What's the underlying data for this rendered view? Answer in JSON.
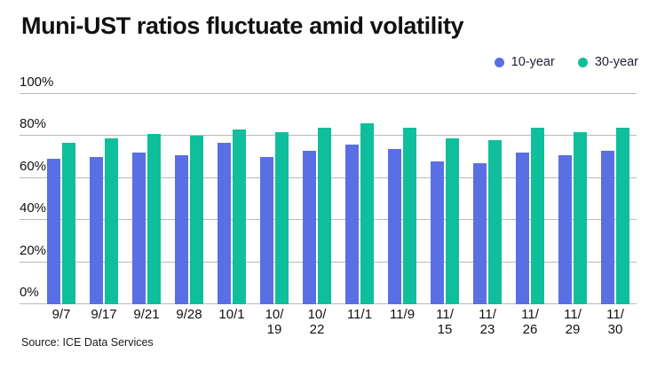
{
  "page": {
    "title": "Muni-UST ratios fluctuate amid volatility",
    "source": "Source: ICE Data Services"
  },
  "legend": {
    "items": [
      {
        "label": "10-year",
        "color": "#5b6fe4"
      },
      {
        "label": "30-year",
        "color": "#0fbf9c"
      }
    ]
  },
  "chart_data": {
    "type": "bar",
    "title": "Muni-UST ratios fluctuate amid volatility",
    "source": "Source: ICE Data Services",
    "categories": [
      "9/7",
      "9/17",
      "9/21",
      "9/28",
      "10/1",
      "10/19",
      "10/22",
      "11/1",
      "11/9",
      "11/15",
      "11/23",
      "11/26",
      "11/29",
      "11/30"
    ],
    "category_label_lines": [
      [
        "9/7"
      ],
      [
        "9/17"
      ],
      [
        "9/21"
      ],
      [
        "9/28"
      ],
      [
        "10/1"
      ],
      [
        "10/",
        "19"
      ],
      [
        "10/",
        "22"
      ],
      [
        "11/1"
      ],
      [
        "11/9"
      ],
      [
        "11/",
        "15"
      ],
      [
        "11/",
        "23"
      ],
      [
        "11/",
        "26"
      ],
      [
        "11/",
        "29"
      ],
      [
        "11/",
        "30"
      ]
    ],
    "series": [
      {
        "name": "10-year",
        "color": "#5b6fe4",
        "values": [
          69,
          70,
          72,
          71,
          77,
          70,
          73,
          76,
          74,
          68,
          67,
          72,
          71,
          73
        ]
      },
      {
        "name": "30-year",
        "color": "#0fbf9c",
        "values": [
          77,
          79,
          81,
          80,
          83,
          82,
          84,
          86,
          84,
          79,
          78,
          84,
          82,
          84
        ]
      }
    ],
    "xlabel": "",
    "ylabel": "",
    "ylim": [
      0,
      100
    ],
    "yticks": [
      0,
      20,
      40,
      60,
      80,
      100
    ],
    "ytick_suffix": "%",
    "grid": true,
    "legend_position": "top-right",
    "grid_color": "#b9b9b9"
  }
}
